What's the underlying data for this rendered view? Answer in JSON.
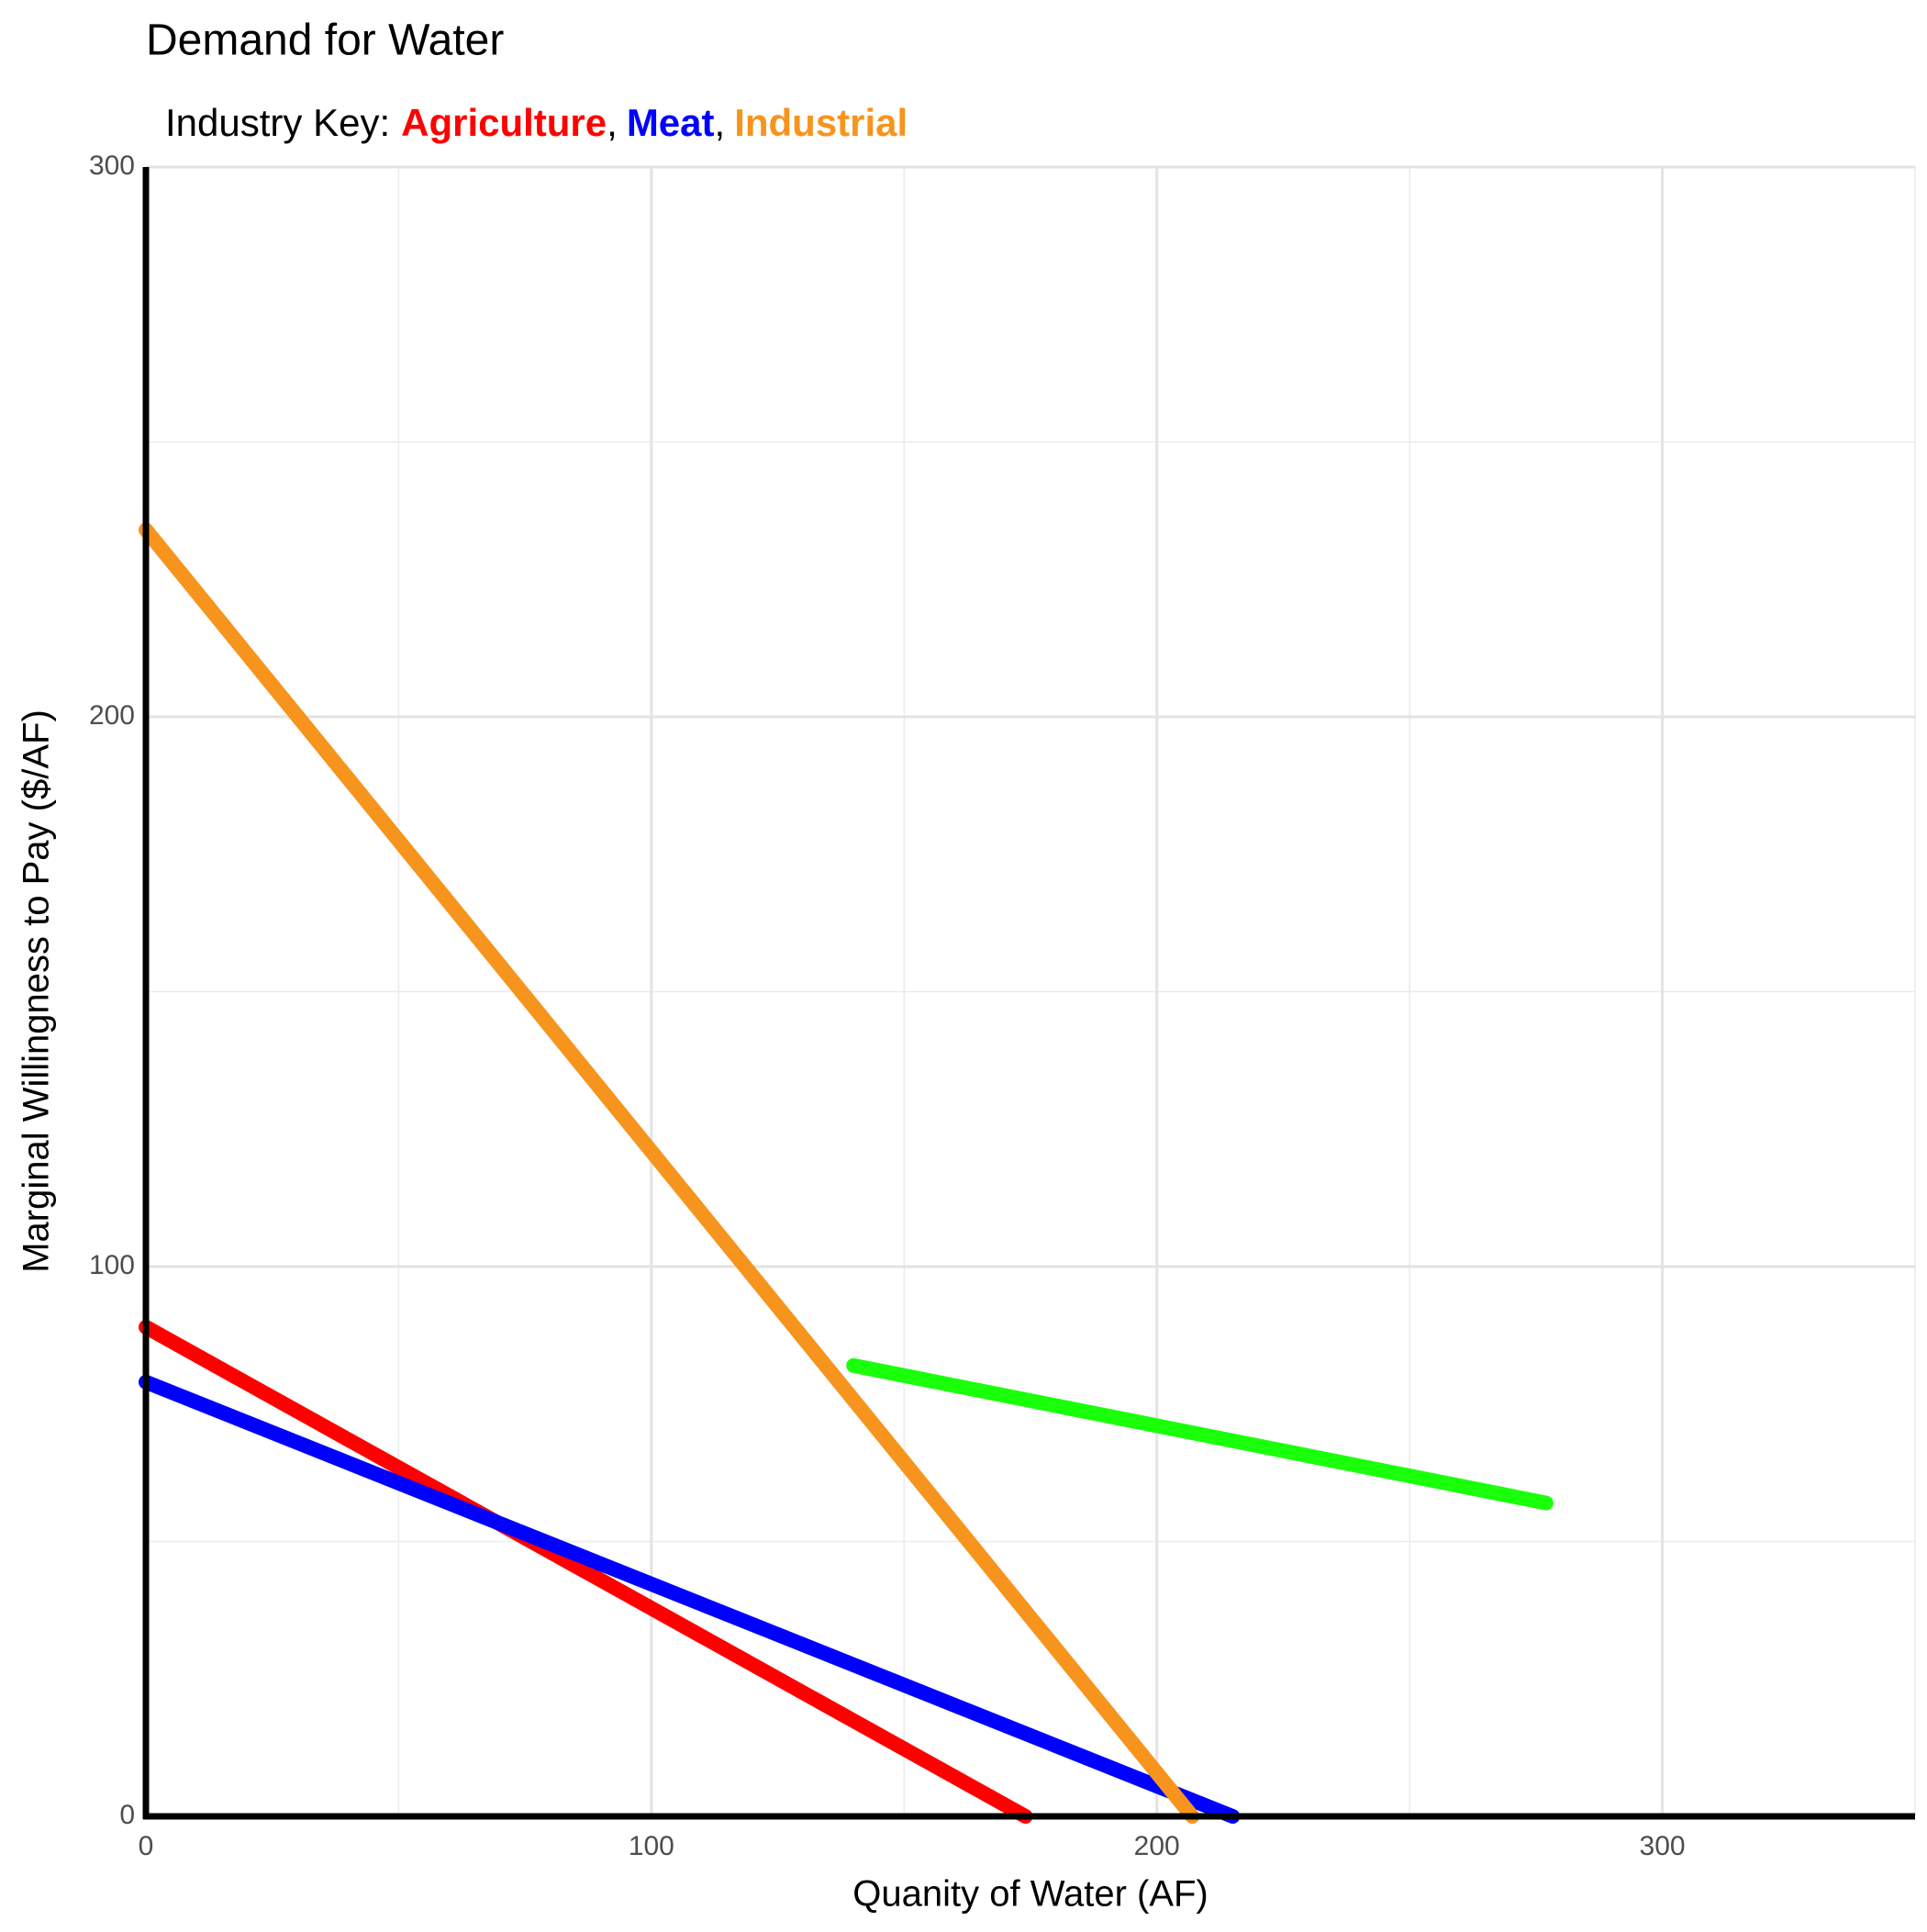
{
  "chart_data": {
    "type": "line",
    "title": "Demand for Water",
    "legend_title": "Industry Key:",
    "legend_separator": ",",
    "x_label": "Quanity of Water (AF)",
    "y_label": "Marginal Willingness to Pay ($/AF)",
    "xlim": [
      0,
      350
    ],
    "ylim": [
      0,
      300
    ],
    "xticks": [
      0,
      100,
      200,
      300
    ],
    "yticks": [
      0,
      100,
      200,
      300
    ],
    "x_minor_ticks": [
      50,
      150,
      250,
      350
    ],
    "y_minor_ticks": [
      50,
      150,
      250
    ],
    "grid": true,
    "series": [
      {
        "name": "Agriculture",
        "color": "#ff0000",
        "x": [
          0,
          174
        ],
        "values": [
          89,
          0
        ]
      },
      {
        "name": "Meat",
        "color": "#0000ff",
        "x": [
          0,
          215
        ],
        "values": [
          79,
          0
        ]
      },
      {
        "name": "Industrial",
        "color": "#f7941d",
        "x": [
          0,
          207
        ],
        "values": [
          234,
          0
        ]
      },
      {
        "color": "#1aff0a",
        "x": [
          140,
          277
        ],
        "values": [
          82,
          57
        ]
      }
    ]
  }
}
